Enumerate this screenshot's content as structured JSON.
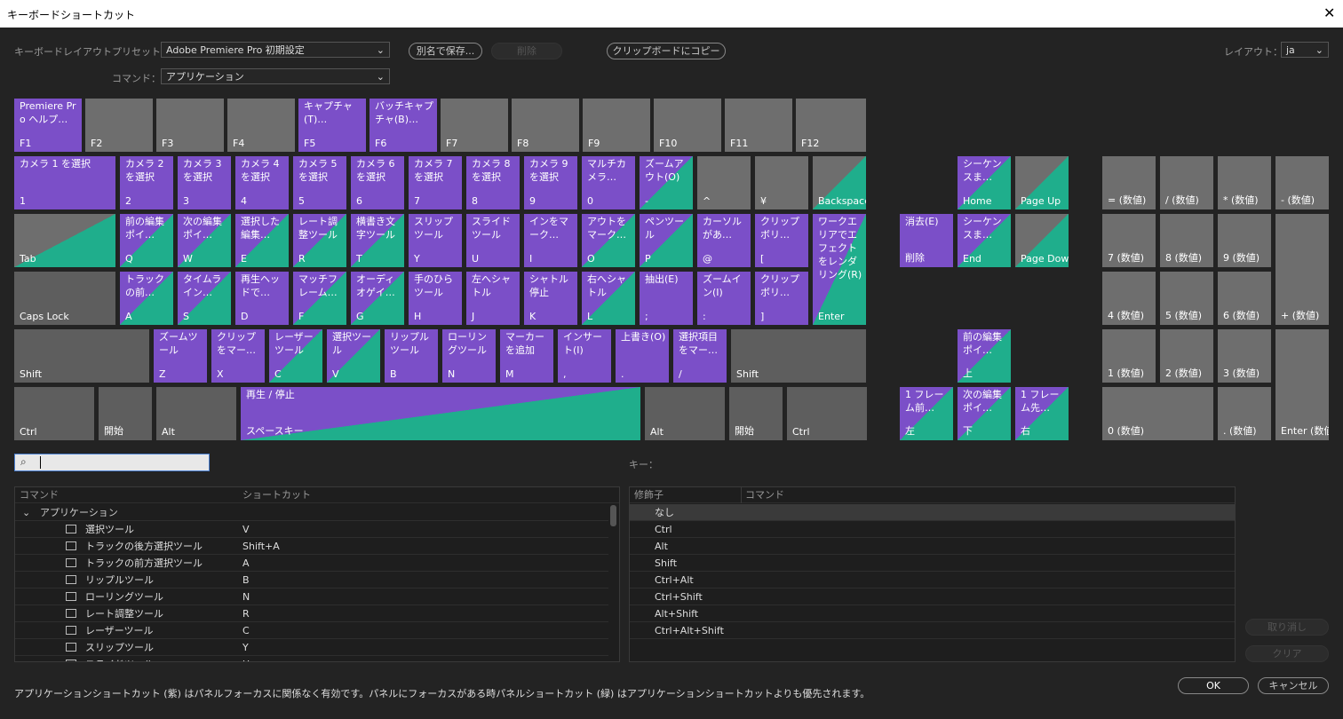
{
  "window": {
    "title": "キーボードショートカット"
  },
  "toolbar": {
    "preset_label": "キーボードレイアウトプリセット：",
    "preset_value": "Adobe Premiere Pro 初期設定",
    "save_as": "別名で保存...",
    "delete": "削除",
    "copy": "クリップボードにコピー",
    "layout_label": "レイアウト：",
    "layout_value": "ja",
    "command_label": "コマンド：",
    "command_value": "アプリケーション"
  },
  "keys": [
    {
      "label": "Premiere Pro ヘルプ…",
      "key": "F1"
    },
    {
      "key": "F2"
    },
    {
      "key": "F3"
    },
    {
      "key": "F4"
    },
    {
      "label": "キャプチャ(T)…",
      "key": "F5"
    },
    {
      "label": "バッチキャプチャ(B)…",
      "key": "F6"
    },
    {
      "key": "F7"
    },
    {
      "key": "F8"
    },
    {
      "key": "F9"
    },
    {
      "key": "F10"
    },
    {
      "key": "F11"
    },
    {
      "key": "F12"
    },
    {
      "label": "カメラ 1 を選択",
      "key": "1"
    },
    {
      "label": "カメラ 2 を選択",
      "key": "2"
    },
    {
      "label": "カメラ 3 を選択",
      "key": "3"
    },
    {
      "label": "カメラ 4 を選択",
      "key": "4"
    },
    {
      "label": "カメラ 5 を選択",
      "key": "5"
    },
    {
      "label": "カメラ 6 を選択",
      "key": "6"
    },
    {
      "label": "カメラ 7 を選択",
      "key": "7"
    },
    {
      "label": "カメラ 8 を選択",
      "key": "8"
    },
    {
      "label": "カメラ 9 を選択",
      "key": "9"
    },
    {
      "label": "マルチカメラ…",
      "key": "0"
    },
    {
      "label": "ズームアウト(O)",
      "key": "-"
    },
    {
      "key": "^"
    },
    {
      "key": "¥"
    },
    {
      "key": "Backspace"
    },
    {
      "label": "シーケンスま…",
      "key": "Home"
    },
    {
      "key": "Page Up"
    },
    {
      "key": "= (数値)"
    },
    {
      "key": "/ (数値)"
    },
    {
      "key": "* (数値)"
    },
    {
      "key": "- (数値)"
    },
    {
      "key": "Tab"
    },
    {
      "label": "前の編集ポイ…",
      "key": "Q"
    },
    {
      "label": "次の編集ポイ…",
      "key": "W"
    },
    {
      "label": "選択した編集…",
      "key": "E"
    },
    {
      "label": "レート調整ツール",
      "key": "R"
    },
    {
      "label": "横書き文字ツール",
      "key": "T"
    },
    {
      "label": "スリップツール",
      "key": "Y"
    },
    {
      "label": "スライドツール",
      "key": "U"
    },
    {
      "label": "インをマーク…",
      "key": "I"
    },
    {
      "label": "アウトをマーク…",
      "key": "O"
    },
    {
      "label": "ペンツール",
      "key": "P"
    },
    {
      "label": "カーソルがあ…",
      "key": "@"
    },
    {
      "label": "クリップボリ…",
      "key": "["
    },
    {
      "label": "ワークエリアでエフェクトをレンダリング(R)",
      "key": "Enter"
    },
    {
      "label": "消去(E)",
      "key": "削除"
    },
    {
      "label": "シーケンスま…",
      "key": "End"
    },
    {
      "key": "Page Down"
    },
    {
      "key": "7 (数値)"
    },
    {
      "key": "8 (数値)"
    },
    {
      "key": "9 (数値)"
    },
    {
      "key": "+ (数値)"
    },
    {
      "key": "Caps Lock"
    },
    {
      "label": "トラックの前…",
      "key": "A"
    },
    {
      "label": "タイムライン…",
      "key": "S"
    },
    {
      "label": "再生ヘッドで…",
      "key": "D"
    },
    {
      "label": "マッチフレーム…",
      "key": "F"
    },
    {
      "label": "オーディオゲイ…",
      "key": "G"
    },
    {
      "label": "手のひらツール",
      "key": "H"
    },
    {
      "label": "左へシャトル",
      "key": "J"
    },
    {
      "label": "シャトル停止",
      "key": "K"
    },
    {
      "label": "右へシャトル",
      "key": "L"
    },
    {
      "label": "抽出(E)",
      "key": ";"
    },
    {
      "label": "ズームイン(I)",
      "key": ":"
    },
    {
      "label": "クリップボリ…",
      "key": "]"
    },
    {
      "key": "4 (数値)"
    },
    {
      "key": "5 (数値)"
    },
    {
      "key": "6 (数値)"
    },
    {
      "key": "Shift"
    },
    {
      "label": "ズームツール",
      "key": "Z"
    },
    {
      "label": "クリップをマー…",
      "key": "X"
    },
    {
      "label": "レーザーツール",
      "key": "C"
    },
    {
      "label": "選択ツール",
      "key": "V"
    },
    {
      "label": "リップルツール",
      "key": "B"
    },
    {
      "label": "ローリングツール",
      "key": "N"
    },
    {
      "label": "マーカーを追加",
      "key": "M"
    },
    {
      "label": "インサート(I)",
      "key": ","
    },
    {
      "label": "上書き(O)",
      "key": "."
    },
    {
      "label": "選択項目をマー…",
      "key": "/"
    },
    {
      "key": "Shift"
    },
    {
      "label": "前の編集ポイ…",
      "key": "上"
    },
    {
      "key": "1 (数値)"
    },
    {
      "key": "2 (数値)"
    },
    {
      "key": "3 (数値)"
    },
    {
      "key": "Enter (数値)"
    },
    {
      "key": "Ctrl"
    },
    {
      "key": "開始"
    },
    {
      "key": "Alt"
    },
    {
      "label": "再生 / 停止",
      "key": "スペースキー"
    },
    {
      "key": "Alt"
    },
    {
      "key": "開始"
    },
    {
      "key": "Ctrl"
    },
    {
      "label": "1 フレーム前…",
      "key": "左"
    },
    {
      "label": "次の編集ポイ…",
      "key": "下"
    },
    {
      "label": "1 フレーム先…",
      "key": "右"
    },
    {
      "key": "0 (数値)"
    },
    {
      "key": ". (数値)"
    }
  ],
  "commands": {
    "headers": [
      "コマンド",
      "ショートカット"
    ],
    "group": "アプリケーション",
    "rows": [
      [
        "選択ツール",
        "V"
      ],
      [
        "トラックの後方選択ツール",
        "Shift+A"
      ],
      [
        "トラックの前方選択ツール",
        "A"
      ],
      [
        "リップルツール",
        "B"
      ],
      [
        "ローリングツール",
        "N"
      ],
      [
        "レート調整ツール",
        "R"
      ],
      [
        "レーザーツール",
        "C"
      ],
      [
        "スリップツール",
        "Y"
      ],
      [
        "スライドツール",
        "U"
      ]
    ]
  },
  "key_panel": {
    "label": "キー：",
    "headers": [
      "修飾子",
      "コマンド"
    ],
    "rows": [
      "なし",
      "Ctrl",
      "Alt",
      "Shift",
      "Ctrl+Alt",
      "Ctrl+Shift",
      "Alt+Shift",
      "Ctrl+Alt+Shift"
    ]
  },
  "footer": {
    "note": "アプリケーションショートカット (紫) はパネルフォーカスに関係なく有効です。パネルにフォーカスがある時パネルショートカット (緑) はアプリケーションショートカットよりも優先されます。",
    "undo": "取り消し",
    "clear": "クリア",
    "ok": "OK",
    "cancel": "キャンセル"
  }
}
